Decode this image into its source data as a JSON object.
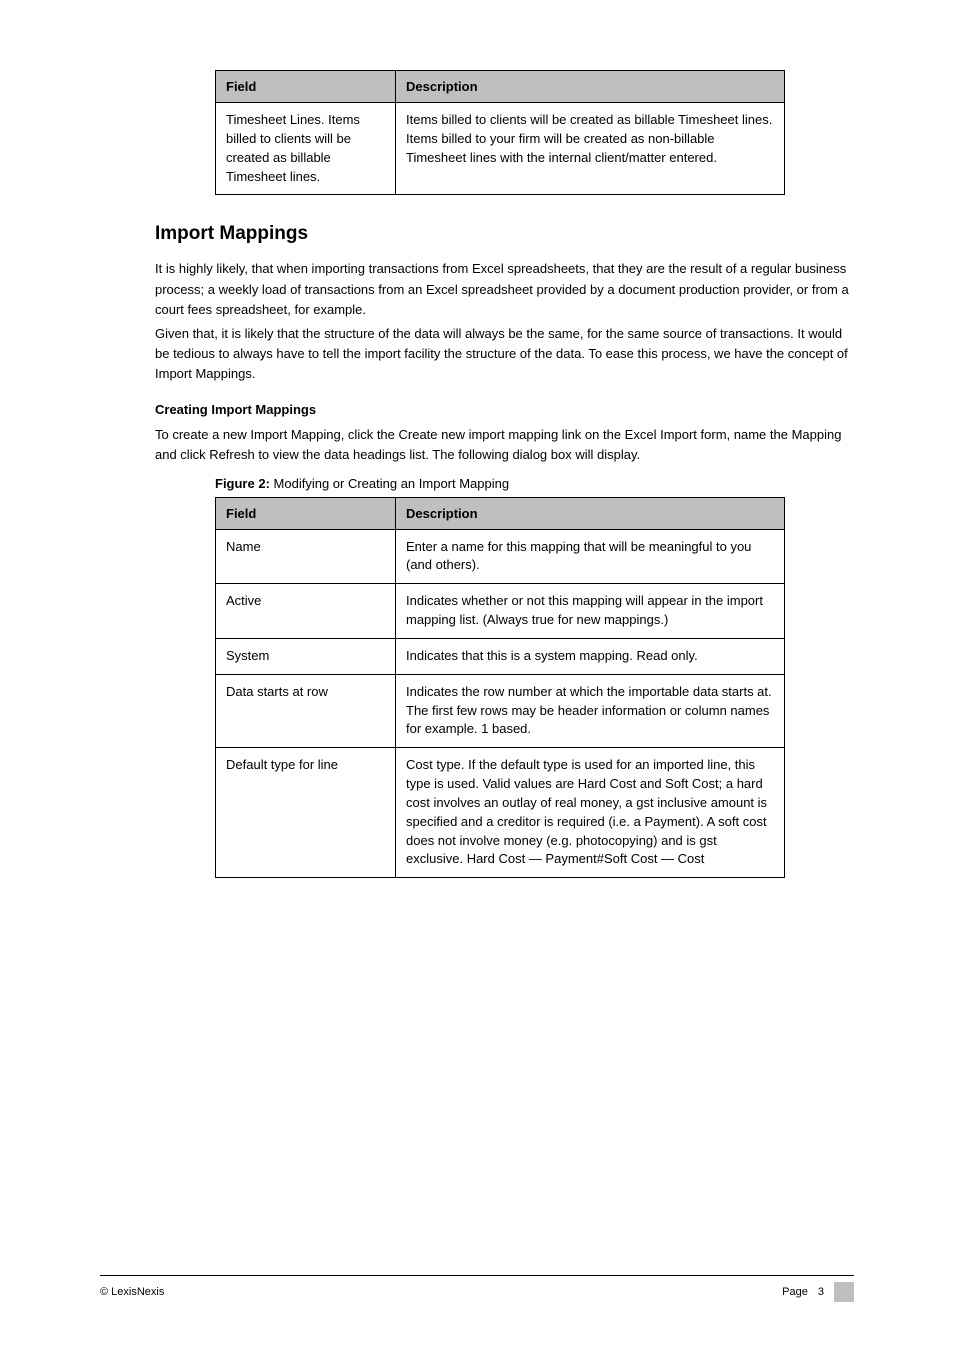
{
  "table1": {
    "headers": [
      "Field",
      "Description"
    ],
    "rows": [
      [
        "Timesheet Lines. Items billed to clients will be created as billable Timesheet lines.",
        "Items billed to clients will be created as billable Timesheet lines. Items billed to your firm will be created as non-billable Timesheet lines with the internal client/matter entered."
      ]
    ]
  },
  "section_title": "Import Mappings",
  "paragraphs": [
    "It is highly likely, that when importing transactions from Excel spreadsheets, that they are the result of a regular business process; a weekly load of transactions from an Excel spreadsheet provided by a document production provider, or from a court fees spreadsheet, for example.",
    "Given that, it is likely that the structure of the data will always be the same, for the same source of transactions. It would be tedious to always have to tell the import facility the structure of the data. To ease this process, we have the concept of Import Mappings."
  ],
  "subheading": "Creating Import Mappings",
  "sub_paragraph": "To create a new Import Mapping, click the Create new import mapping link on the Excel Import form, name the Mapping and click Refresh to view the data headings list. The following dialog box will display.",
  "caption_label": "Figure 2:",
  "caption_text": "Modifying or Creating an Import Mapping",
  "table2": {
    "headers": [
      "Field",
      "Description"
    ],
    "rows": [
      [
        "Name",
        "Enter a name for this mapping that will be meaningful to you (and others)."
      ],
      [
        "Active",
        "Indicates whether or not this mapping will appear in the import mapping list. (Always true for new mappings.)"
      ],
      [
        "System",
        "Indicates that this is a system mapping. Read only."
      ],
      [
        "Data starts at row",
        "Indicates the row number at which the importable data starts at. The first few rows may be header information or column names for example. 1 based."
      ],
      [
        "Default type for line",
        "Cost type. If the default type is used for an imported line, this type is used. Valid values are Hard Cost and Soft Cost; a hard cost involves an outlay of real money, a gst inclusive amount is specified and a creditor is required (i.e. a Payment). A soft cost does not involve money (e.g. photocopying) and is gst exclusive. Hard Cost — Payment#Soft Cost — Cost"
      ]
    ]
  },
  "footer": {
    "left": "© LexisNexis",
    "right_text": "Page",
    "right_num": "3"
  },
  "colors": {
    "header_bg": "#bfbfbf",
    "border": "#000000",
    "text": "#000000",
    "page_bg": "#ffffff"
  }
}
